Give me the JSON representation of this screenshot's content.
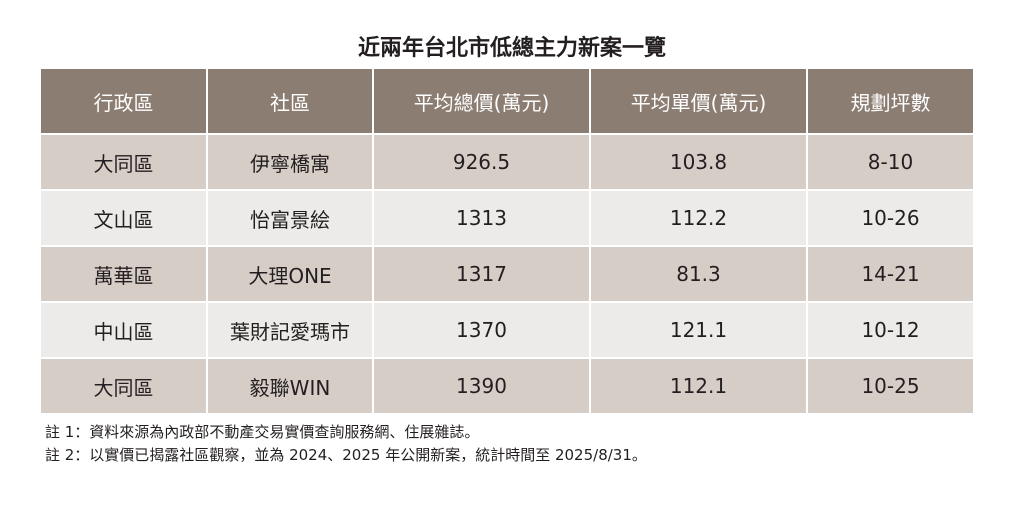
{
  "header": {
    "title": "近兩年台北市低總主力新案一覽"
  },
  "table": {
    "columns": [
      "行政區",
      "社區",
      "平均總價(萬元)",
      "平均單價(萬元)",
      "規劃坪數"
    ],
    "rows": [
      [
        "大同區",
        "伊寧橋寓",
        "926.5",
        "103.8",
        "8-10"
      ],
      [
        "文山區",
        "怡富景絵",
        "1313",
        "112.2",
        "10-26"
      ],
      [
        "萬華區",
        "大理ONE",
        "1317",
        "81.3",
        "14-21"
      ],
      [
        "中山區",
        "葉財記愛瑪市",
        "1370",
        "121.1",
        "10-12"
      ],
      [
        "大同區",
        "毅聯WIN",
        "1390",
        "112.1",
        "10-25"
      ]
    ]
  },
  "notes": [
    "註 1：資料來源為內政部不動產交易實價查詢服務網、住展雜誌。",
    "註 2：以實價已揭露社區觀察，並為 2024、2025 年公開新案，統計時間至 2025/8/31。"
  ]
}
